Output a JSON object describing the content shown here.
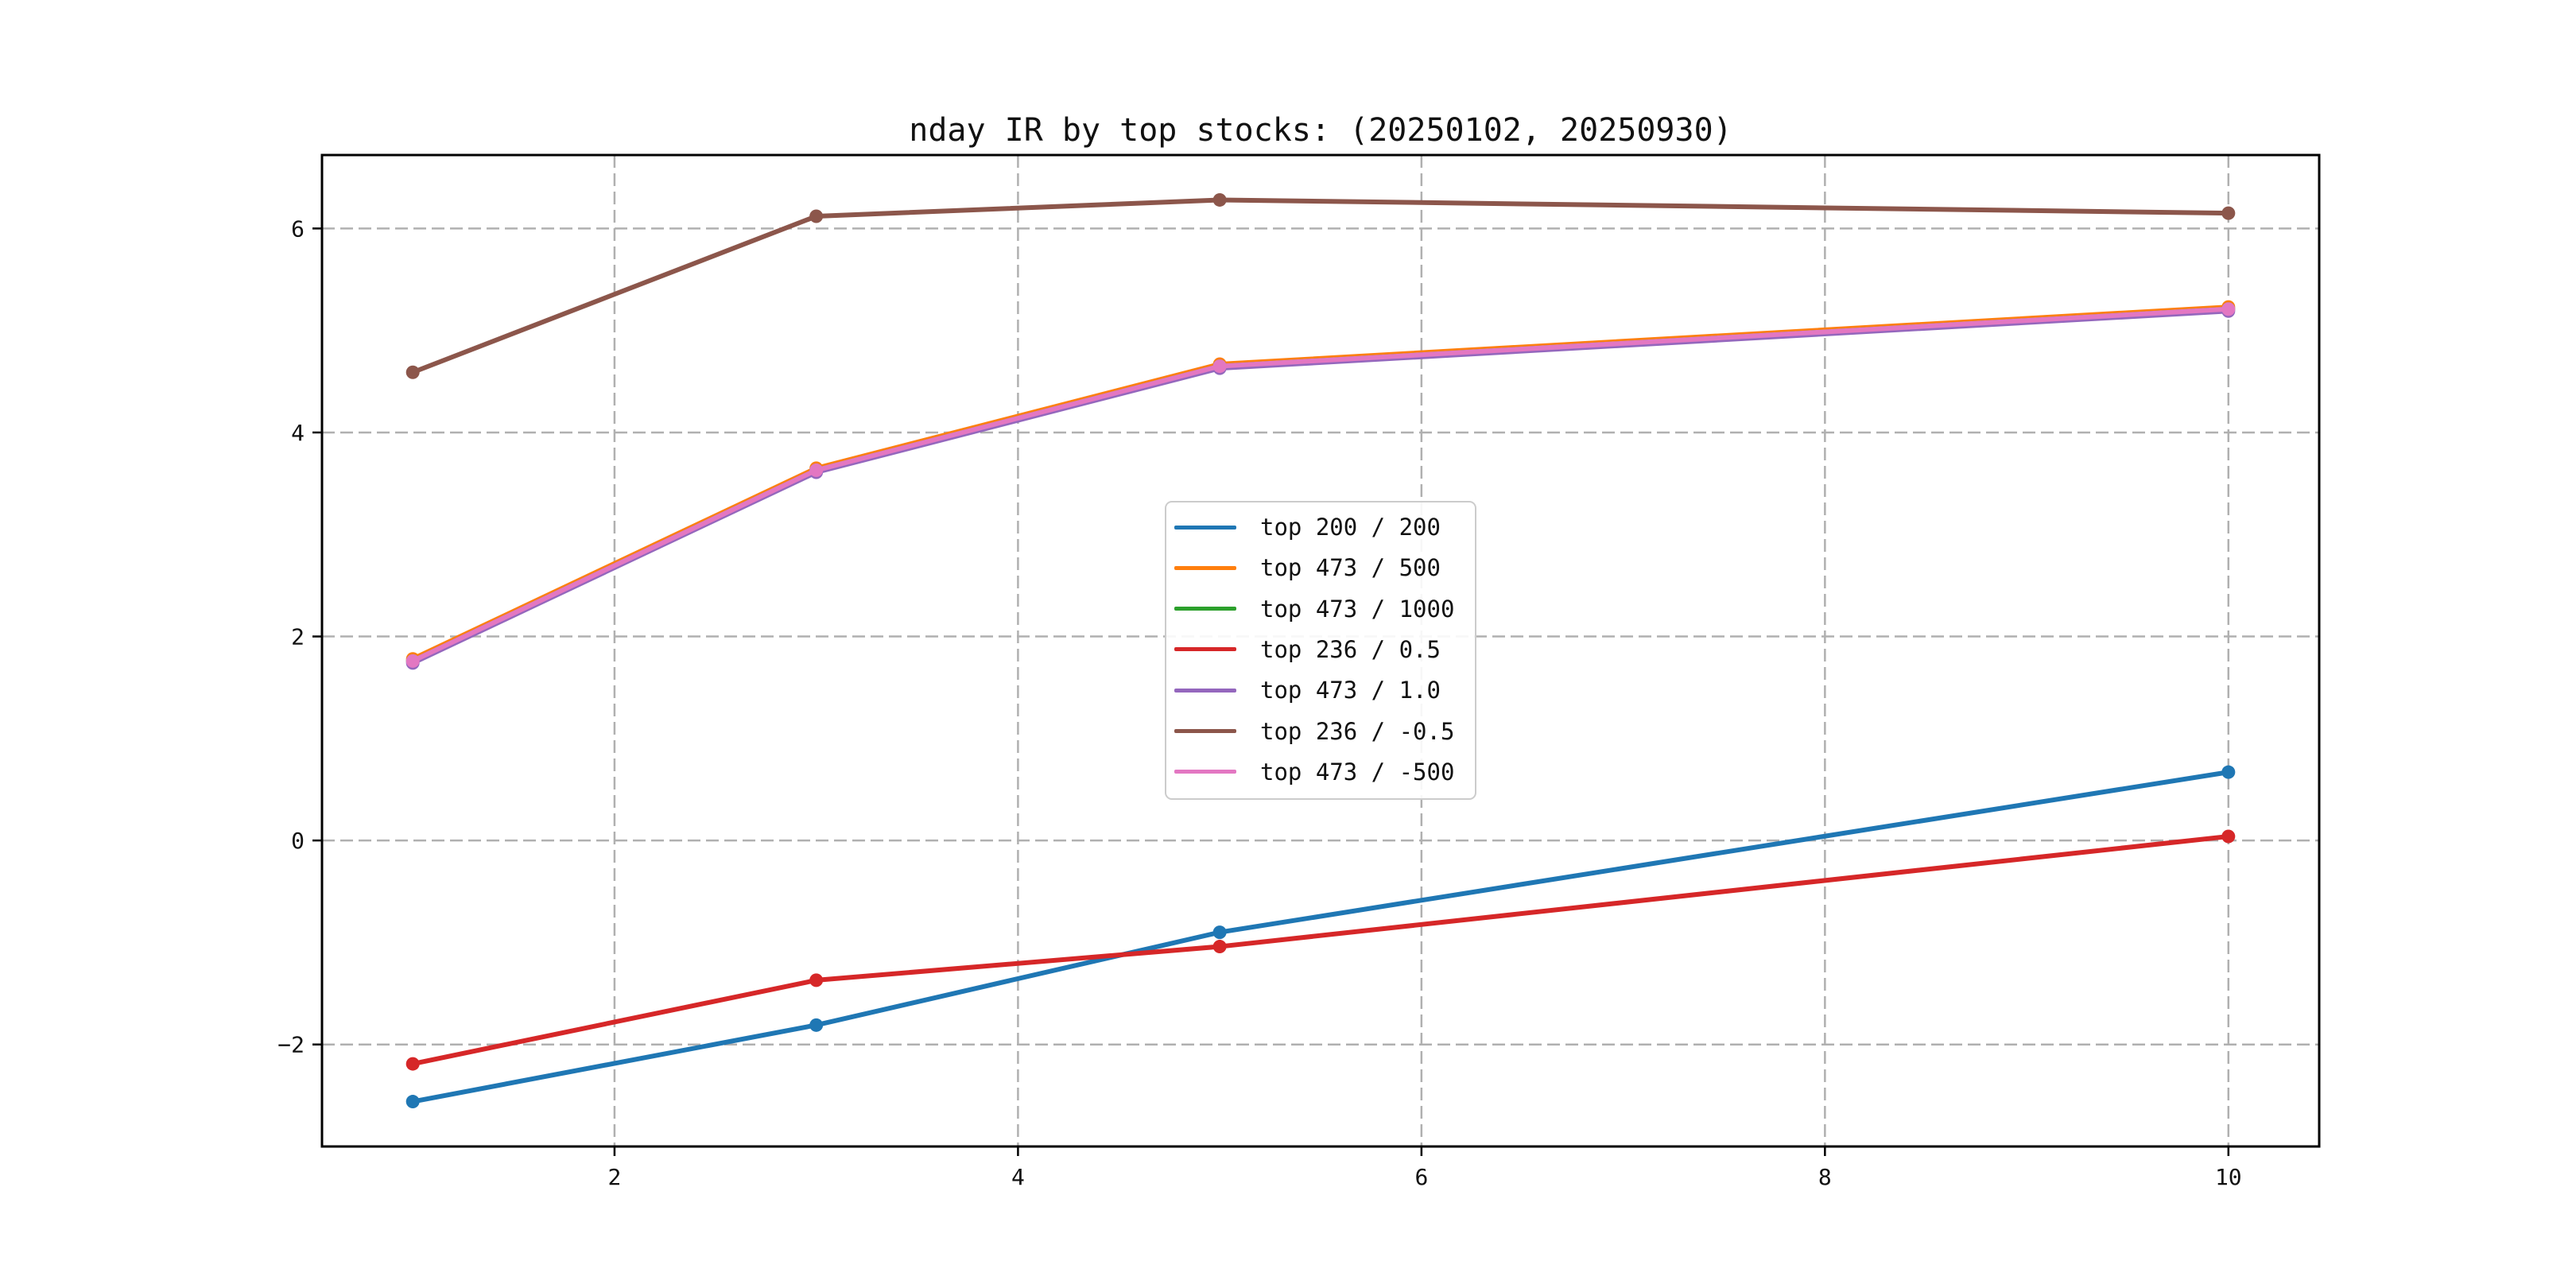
{
  "figure": {
    "background": "#ffffff",
    "spine_color": "#000000",
    "text_color": "#111111"
  },
  "chart_data": {
    "type": "line",
    "title": "nday IR by top stocks: (20250102, 20250930)",
    "xlabel": "",
    "ylabel": "",
    "x": [
      1,
      3,
      5,
      10
    ],
    "series": [
      {
        "name": "top 200 / 200",
        "color": "#1f77b4",
        "values": [
          -2.56,
          -1.81,
          -0.9,
          0.67
        ]
      },
      {
        "name": "top 473 / 500",
        "color": "#ff7f0e",
        "values": [
          1.78,
          3.65,
          4.67,
          5.23
        ]
      },
      {
        "name": "top 473 / 1000",
        "color": "#2ca02c",
        "values": [
          1.76,
          3.63,
          4.65,
          5.21
        ]
      },
      {
        "name": "top 236 / 0.5",
        "color": "#d62728",
        "values": [
          -2.19,
          -1.37,
          -1.04,
          0.04
        ]
      },
      {
        "name": "top 473 / 1.0",
        "color": "#9467bd",
        "values": [
          1.74,
          3.61,
          4.63,
          5.19
        ]
      },
      {
        "name": "top 236 / -0.5",
        "color": "#8c564b",
        "values": [
          4.59,
          6.12,
          6.28,
          6.15
        ]
      },
      {
        "name": "top 473 / -500",
        "color": "#e377c2",
        "values": [
          1.76,
          3.63,
          4.65,
          5.21
        ]
      }
    ],
    "xticks": [
      2,
      4,
      6,
      8,
      10
    ],
    "yticks": [
      -2,
      0,
      2,
      4,
      6
    ],
    "xlim": [
      0.55,
      10.45
    ],
    "ylim": [
      -3.0,
      6.72
    ],
    "grid": true,
    "grid_style": "dashed",
    "grid_color": "#b0b0b0",
    "legend_position": "center",
    "marker": "o"
  }
}
